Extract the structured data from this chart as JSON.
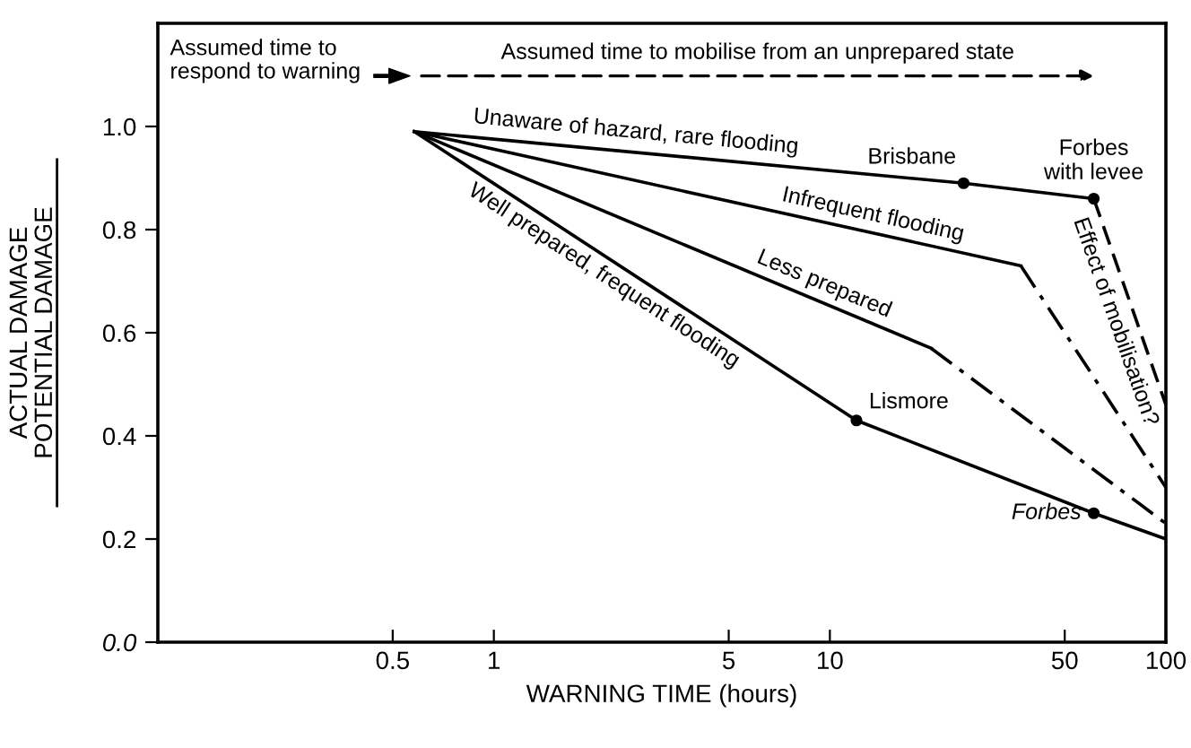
{
  "chart_data": {
    "type": "line",
    "xlabel": "WARNING TIME (hours)",
    "ylabel": "ACTUAL DAMAGE\nPOTENTIAL DAMAGE",
    "log": "x",
    "xlim": [
      0.1,
      100
    ],
    "xticks": [
      0.5,
      1,
      5,
      10,
      50,
      100
    ],
    "ylim": [
      0,
      1.2
    ],
    "yticks": [
      {
        "value": 0,
        "label": "0.0"
      },
      0.2,
      0.4,
      0.6,
      0.8,
      {
        "value": 1,
        "label": "1.0"
      }
    ],
    "grid": false,
    "legend": false,
    "marker": "none",
    "series": [
      {
        "name": "Unaware of hazard, rare flooding",
        "color": "#000000",
        "x": [
          0.58,
          25,
          61
        ],
        "values": [
          0.99,
          0.89,
          0.86
        ],
        "line_style": "solid"
      },
      {
        "name": "Effect of mobilisation?",
        "color": "#000000",
        "x": [
          61,
          100
        ],
        "values": [
          0.86,
          0.46
        ],
        "line_style": "dashed"
      },
      {
        "name": "Infrequent flooding",
        "color": "#000000",
        "x": [
          0.58,
          37
        ],
        "values": [
          0.99,
          0.73
        ],
        "line_style": "solid"
      },
      {
        "color": "#000000",
        "x": [
          37,
          100
        ],
        "values": [
          0.73,
          0.3
        ],
        "line_style": "dashdot"
      },
      {
        "name": "Less prepared",
        "color": "#000000",
        "x": [
          0.58,
          20
        ],
        "values": [
          0.99,
          0.57
        ],
        "line_style": "solid"
      },
      {
        "color": "#000000",
        "x": [
          20,
          100
        ],
        "values": [
          0.57,
          0.23
        ],
        "line_style": "dashdot"
      },
      {
        "name": "Well prepared, frequent flooding",
        "color": "#000000",
        "x": [
          0.58,
          12,
          61,
          100
        ],
        "values": [
          0.99,
          0.43,
          0.25,
          0.2
        ],
        "line_style": "solid"
      },
      {
        "type": "scatter",
        "color": "#000000",
        "marker": "circle",
        "x": [
          25,
          61,
          12,
          61
        ],
        "values": [
          0.89,
          0.86,
          0.43,
          0.25
        ]
      }
    ],
    "annotations": [
      "Assumed time to\nrespond to warning",
      "Assumed time to mobilise from an unprepared state",
      {
        "text": "Brisbane",
        "x": 25,
        "y": 0.89
      },
      {
        "text": "Forbes\nwith levee",
        "x": 61,
        "y": 0.86
      },
      {
        "text": "Lismore",
        "x": 12,
        "y": 0.43
      },
      {
        "text": "Forbes",
        "x": 61,
        "y": 0.25
      }
    ]
  }
}
